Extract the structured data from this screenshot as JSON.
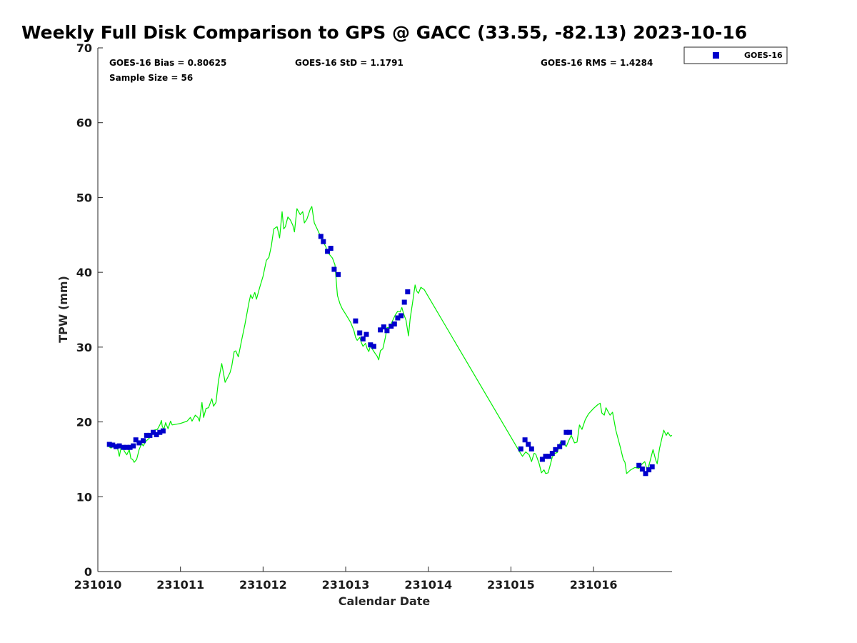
{
  "chart_data": {
    "type": "scatter",
    "title": "Weekly Full Disk Comparison to GPS @ GACC (33.55, -82.13) 2023-10-16",
    "xlabel": "Calendar Date",
    "ylabel": "TPW (mm)",
    "xlim": [
      0,
      6.95
    ],
    "ylim": [
      0,
      70
    ],
    "x_ticks": [
      0,
      1,
      2,
      3,
      4,
      5,
      6
    ],
    "x_tick_labels": [
      "231010",
      "231011",
      "231012",
      "231013",
      "231014",
      "231015",
      "231016"
    ],
    "y_ticks": [
      0,
      10,
      20,
      30,
      40,
      50,
      60,
      70
    ],
    "y_tick_labels": [
      "0",
      "10",
      "20",
      "30",
      "40",
      "50",
      "60",
      "70"
    ],
    "grid": false,
    "legend_position": "top-right-outside",
    "stats": {
      "bias": "GOES-16 Bias = 0.80625",
      "std": "GOES-16 StD = 1.1791",
      "rms": "GOES-16 RMS = 1.4284",
      "sample": "Sample Size = 56"
    },
    "series": [
      {
        "name": "GOES-16",
        "marker": "square",
        "color": "#0000cc",
        "points": [
          [
            0.14,
            17.0
          ],
          [
            0.18,
            16.9
          ],
          [
            0.22,
            16.7
          ],
          [
            0.26,
            16.8
          ],
          [
            0.31,
            16.6
          ],
          [
            0.35,
            16.6
          ],
          [
            0.39,
            16.6
          ],
          [
            0.43,
            16.8
          ],
          [
            0.46,
            17.6
          ],
          [
            0.5,
            17.2
          ],
          [
            0.55,
            17.5
          ],
          [
            0.59,
            18.2
          ],
          [
            0.63,
            18.2
          ],
          [
            0.67,
            18.6
          ],
          [
            0.71,
            18.3
          ],
          [
            0.75,
            18.6
          ],
          [
            0.79,
            18.8
          ],
          [
            2.7,
            44.8
          ],
          [
            2.73,
            44.1
          ],
          [
            2.78,
            42.8
          ],
          [
            2.82,
            43.2
          ],
          [
            2.86,
            40.4
          ],
          [
            2.91,
            39.7
          ],
          [
            3.12,
            33.5
          ],
          [
            3.17,
            31.9
          ],
          [
            3.21,
            31.1
          ],
          [
            3.25,
            31.7
          ],
          [
            3.3,
            30.3
          ],
          [
            3.34,
            30.1
          ],
          [
            3.42,
            32.3
          ],
          [
            3.46,
            32.7
          ],
          [
            3.5,
            32.2
          ],
          [
            3.55,
            32.8
          ],
          [
            3.59,
            33.1
          ],
          [
            3.63,
            33.9
          ],
          [
            3.67,
            34.2
          ],
          [
            3.71,
            36.0
          ],
          [
            3.75,
            37.4
          ],
          [
            5.12,
            16.4
          ],
          [
            5.17,
            17.6
          ],
          [
            5.21,
            17.0
          ],
          [
            5.25,
            16.4
          ],
          [
            5.38,
            15.0
          ],
          [
            5.42,
            15.4
          ],
          [
            5.46,
            15.4
          ],
          [
            5.5,
            15.8
          ],
          [
            5.54,
            16.3
          ],
          [
            5.59,
            16.7
          ],
          [
            5.63,
            17.2
          ],
          [
            5.67,
            18.6
          ],
          [
            5.71,
            18.6
          ],
          [
            6.55,
            14.2
          ],
          [
            6.59,
            13.7
          ],
          [
            6.63,
            13.1
          ],
          [
            6.67,
            13.6
          ],
          [
            6.71,
            14.0
          ]
        ]
      },
      {
        "name": "",
        "marker": "line",
        "color": "#00ee00",
        "points": [
          [
            0.12,
            16.8
          ],
          [
            0.16,
            16.5
          ],
          [
            0.2,
            16.9
          ],
          [
            0.24,
            16.4
          ],
          [
            0.26,
            15.4
          ],
          [
            0.28,
            16.5
          ],
          [
            0.3,
            16.8
          ],
          [
            0.32,
            16.1
          ],
          [
            0.35,
            15.6
          ],
          [
            0.38,
            16.3
          ],
          [
            0.4,
            15.1
          ],
          [
            0.42,
            15.0
          ],
          [
            0.44,
            14.6
          ],
          [
            0.47,
            15.0
          ],
          [
            0.5,
            16.3
          ],
          [
            0.53,
            17.1
          ],
          [
            0.55,
            16.8
          ],
          [
            0.58,
            17.4
          ],
          [
            0.62,
            17.8
          ],
          [
            0.65,
            18.2
          ],
          [
            0.68,
            18.9
          ],
          [
            0.72,
            19.0
          ],
          [
            0.75,
            19.6
          ],
          [
            0.77,
            20.2
          ],
          [
            0.78,
            19.4
          ],
          [
            0.8,
            19.0
          ],
          [
            0.82,
            19.9
          ],
          [
            0.85,
            19.1
          ],
          [
            0.88,
            20.1
          ],
          [
            0.9,
            19.6
          ],
          [
            1.0,
            19.8
          ],
          [
            1.08,
            20.1
          ],
          [
            1.12,
            20.6
          ],
          [
            1.14,
            20.1
          ],
          [
            1.18,
            20.9
          ],
          [
            1.21,
            20.6
          ],
          [
            1.23,
            20.1
          ],
          [
            1.26,
            22.6
          ],
          [
            1.28,
            20.6
          ],
          [
            1.31,
            21.8
          ],
          [
            1.34,
            21.9
          ],
          [
            1.38,
            23.1
          ],
          [
            1.4,
            22.1
          ],
          [
            1.43,
            22.6
          ],
          [
            1.46,
            25.5
          ],
          [
            1.5,
            27.8
          ],
          [
            1.52,
            26.6
          ],
          [
            1.54,
            25.3
          ],
          [
            1.57,
            25.9
          ],
          [
            1.6,
            26.6
          ],
          [
            1.62,
            27.4
          ],
          [
            1.65,
            29.4
          ],
          [
            1.67,
            29.5
          ],
          [
            1.7,
            28.7
          ],
          [
            1.74,
            30.9
          ],
          [
            1.78,
            33.0
          ],
          [
            1.83,
            36.0
          ],
          [
            1.85,
            37.0
          ],
          [
            1.87,
            36.5
          ],
          [
            1.9,
            37.3
          ],
          [
            1.92,
            36.4
          ],
          [
            1.96,
            38.0
          ],
          [
            2.0,
            39.5
          ],
          [
            2.04,
            41.6
          ],
          [
            2.07,
            42.0
          ],
          [
            2.1,
            43.5
          ],
          [
            2.13,
            45.8
          ],
          [
            2.17,
            46.1
          ],
          [
            2.2,
            44.6
          ],
          [
            2.23,
            48.1
          ],
          [
            2.25,
            45.8
          ],
          [
            2.27,
            46.1
          ],
          [
            2.3,
            47.4
          ],
          [
            2.33,
            47.0
          ],
          [
            2.36,
            46.3
          ],
          [
            2.38,
            45.4
          ],
          [
            2.41,
            48.5
          ],
          [
            2.43,
            48.1
          ],
          [
            2.45,
            47.7
          ],
          [
            2.48,
            48.1
          ],
          [
            2.5,
            46.6
          ],
          [
            2.53,
            47.1
          ],
          [
            2.57,
            48.4
          ],
          [
            2.59,
            48.8
          ],
          [
            2.62,
            46.6
          ],
          [
            2.65,
            45.9
          ],
          [
            2.68,
            45.2
          ],
          [
            2.7,
            44.9
          ],
          [
            2.72,
            44.2
          ],
          [
            2.76,
            43.4
          ],
          [
            2.78,
            42.7
          ],
          [
            2.81,
            42.3
          ],
          [
            2.84,
            41.9
          ],
          [
            2.87,
            41.0
          ],
          [
            2.9,
            36.9
          ],
          [
            2.93,
            35.8
          ],
          [
            2.96,
            35.1
          ],
          [
            3.0,
            34.4
          ],
          [
            3.06,
            33.3
          ],
          [
            3.1,
            32.2
          ],
          [
            3.12,
            31.3
          ],
          [
            3.14,
            30.9
          ],
          [
            3.17,
            31.3
          ],
          [
            3.19,
            30.6
          ],
          [
            3.21,
            30.1
          ],
          [
            3.24,
            30.5
          ],
          [
            3.26,
            29.8
          ],
          [
            3.28,
            29.4
          ],
          [
            3.3,
            30.2
          ],
          [
            3.33,
            29.6
          ],
          [
            3.36,
            29.1
          ],
          [
            3.38,
            28.8
          ],
          [
            3.4,
            28.3
          ],
          [
            3.42,
            29.5
          ],
          [
            3.45,
            29.8
          ],
          [
            3.48,
            31.3
          ],
          [
            3.5,
            32.6
          ],
          [
            3.53,
            32.6
          ],
          [
            3.57,
            33.6
          ],
          [
            3.6,
            34.3
          ],
          [
            3.63,
            34.8
          ],
          [
            3.66,
            34.7
          ],
          [
            3.68,
            35.3
          ],
          [
            3.7,
            34.5
          ],
          [
            3.73,
            33.6
          ],
          [
            3.76,
            31.5
          ],
          [
            3.78,
            33.8
          ],
          [
            3.81,
            36.0
          ],
          [
            3.84,
            38.3
          ],
          [
            3.86,
            37.5
          ],
          [
            3.88,
            37.2
          ],
          [
            3.91,
            38.0
          ],
          [
            3.95,
            37.7
          ],
          [
            5.1,
            16.1
          ],
          [
            5.14,
            15.4
          ],
          [
            5.18,
            16.0
          ],
          [
            5.22,
            15.6
          ],
          [
            5.25,
            14.7
          ],
          [
            5.28,
            15.8
          ],
          [
            5.3,
            15.7
          ],
          [
            5.34,
            14.5
          ],
          [
            5.37,
            13.2
          ],
          [
            5.4,
            13.6
          ],
          [
            5.42,
            13.1
          ],
          [
            5.45,
            13.2
          ],
          [
            5.47,
            14.0
          ],
          [
            5.5,
            15.3
          ],
          [
            5.53,
            15.8
          ],
          [
            5.56,
            15.9
          ],
          [
            5.6,
            17.3
          ],
          [
            5.64,
            17.1
          ],
          [
            5.67,
            16.7
          ],
          [
            5.7,
            17.5
          ],
          [
            5.73,
            18.2
          ],
          [
            5.77,
            17.2
          ],
          [
            5.8,
            17.3
          ],
          [
            5.83,
            19.6
          ],
          [
            5.86,
            19.0
          ],
          [
            5.9,
            20.3
          ],
          [
            5.94,
            21.1
          ],
          [
            6.0,
            21.8
          ],
          [
            6.05,
            22.3
          ],
          [
            6.08,
            22.5
          ],
          [
            6.1,
            21.2
          ],
          [
            6.13,
            20.9
          ],
          [
            6.15,
            21.9
          ],
          [
            6.18,
            21.3
          ],
          [
            6.2,
            20.9
          ],
          [
            6.23,
            21.3
          ],
          [
            6.27,
            18.9
          ],
          [
            6.32,
            16.8
          ],
          [
            6.36,
            15.0
          ],
          [
            6.38,
            14.6
          ],
          [
            6.4,
            13.1
          ],
          [
            6.45,
            13.6
          ],
          [
            6.5,
            13.9
          ],
          [
            6.55,
            13.8
          ],
          [
            6.58,
            14.3
          ],
          [
            6.62,
            14.7
          ],
          [
            6.65,
            13.5
          ],
          [
            6.68,
            14.6
          ],
          [
            6.72,
            16.3
          ],
          [
            6.75,
            15.0
          ],
          [
            6.77,
            14.4
          ],
          [
            6.8,
            16.5
          ],
          [
            6.85,
            18.9
          ],
          [
            6.88,
            18.2
          ],
          [
            6.9,
            18.6
          ],
          [
            6.93,
            18.1
          ],
          [
            6.95,
            18.2
          ]
        ]
      }
    ]
  }
}
